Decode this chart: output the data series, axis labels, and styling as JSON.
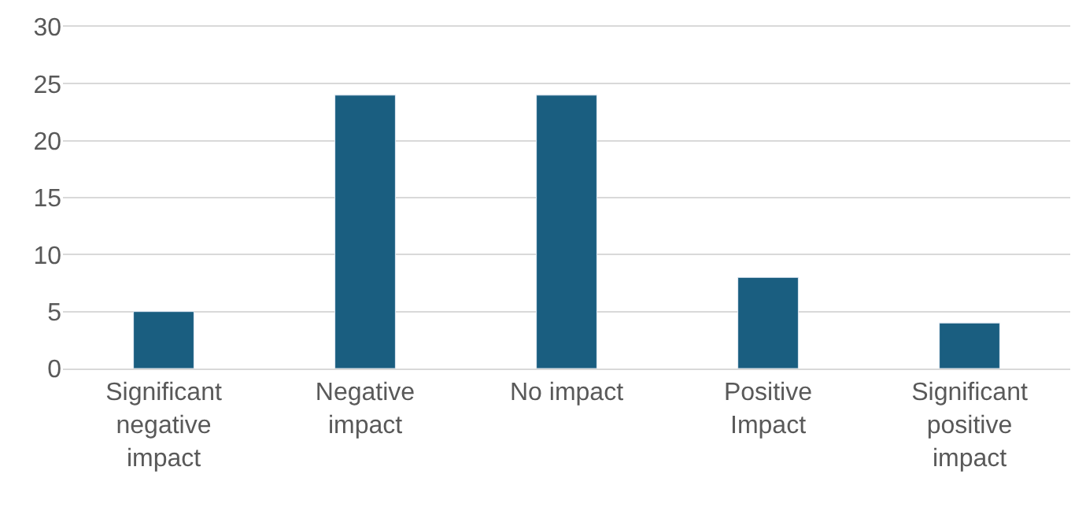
{
  "chart_data": {
    "type": "bar",
    "categories": [
      "Significant negative impact",
      "Negative impact",
      "No impact",
      "Positive Impact",
      "Significant positive impact"
    ],
    "values": [
      5,
      24,
      24,
      8,
      4
    ],
    "color": "#1a5e80",
    "ylim": [
      0,
      30
    ],
    "yticks": [
      0,
      5,
      10,
      15,
      20,
      25,
      30
    ],
    "grid": "y"
  }
}
